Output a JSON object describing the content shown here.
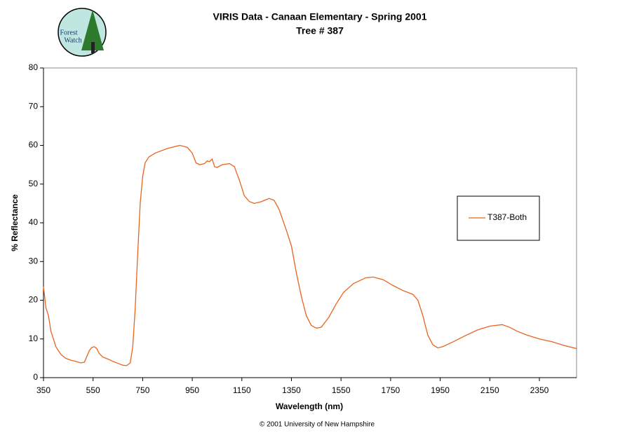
{
  "logo": {
    "line1": "Forest",
    "line2": "Watch"
  },
  "chart_data": {
    "type": "line",
    "title": "VIRIS Data - Canaan Elementary - Spring 2001",
    "subtitle": "Tree # 387",
    "x_label": "Wavelength (nm)",
    "y_label": "% Reflectance",
    "x": [
      350,
      360,
      370,
      380,
      390,
      400,
      410,
      420,
      440,
      460,
      480,
      500,
      515,
      525,
      535,
      545,
      555,
      565,
      575,
      590,
      610,
      630,
      650,
      670,
      685,
      700,
      710,
      720,
      730,
      740,
      750,
      760,
      775,
      800,
      850,
      900,
      930,
      950,
      965,
      980,
      1000,
      1010,
      1020,
      1030,
      1040,
      1050,
      1070,
      1100,
      1120,
      1140,
      1160,
      1180,
      1200,
      1230,
      1260,
      1280,
      1300,
      1330,
      1350,
      1370,
      1390,
      1410,
      1430,
      1450,
      1470,
      1500,
      1530,
      1560,
      1600,
      1650,
      1680,
      1720,
      1760,
      1800,
      1840,
      1860,
      1880,
      1900,
      1920,
      1940,
      1960,
      2000,
      2050,
      2100,
      2150,
      2200,
      2230,
      2260,
      2300,
      2350,
      2400,
      2450,
      2500
    ],
    "series": [
      {
        "name": "T387-Both",
        "color": "#e8641e",
        "values": [
          23.5,
          18,
          16,
          12,
          10,
          8,
          7,
          6,
          5,
          4.5,
          4.2,
          3.8,
          4,
          5.5,
          7,
          7.8,
          8,
          7.5,
          6.2,
          5.3,
          4.8,
          4.2,
          3.7,
          3.2,
          3.1,
          3.8,
          8,
          18,
          32,
          45,
          52,
          55.5,
          57,
          58,
          59.2,
          60,
          59.5,
          58,
          55.5,
          55,
          55.3,
          56,
          55.8,
          56.5,
          54.5,
          54.3,
          55,
          55.3,
          54.5,
          51,
          47,
          45.5,
          45,
          45.5,
          46.3,
          45.8,
          43.5,
          38,
          34,
          27,
          21,
          16,
          13.5,
          12.8,
          13,
          15.5,
          19,
          22,
          24.3,
          25.8,
          26,
          25.3,
          23.8,
          22.5,
          21.5,
          20,
          16,
          11,
          8.5,
          7.7,
          8,
          9.2,
          10.8,
          12.3,
          13.3,
          13.7,
          13,
          12,
          11,
          10,
          9.3,
          8.3,
          7.5
        ]
      }
    ],
    "xlim": [
      350,
      2500
    ],
    "xticks": [
      350,
      550,
      750,
      950,
      1150,
      1350,
      1550,
      1750,
      1950,
      2150,
      2350
    ],
    "ylim": [
      0,
      80
    ],
    "yticks": [
      0,
      10,
      20,
      30,
      40,
      50,
      60,
      70,
      80
    ],
    "grid": false,
    "legend": "right"
  },
  "footer": "© 2001 University of New Hampshire"
}
